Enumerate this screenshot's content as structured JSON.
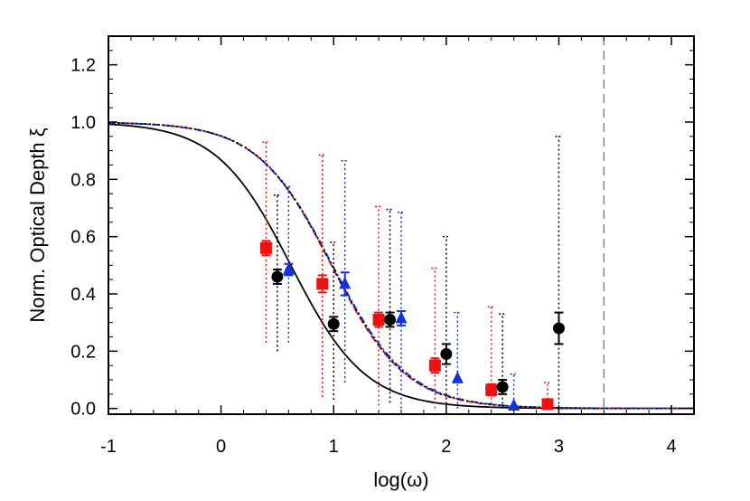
{
  "chart_data": {
    "type": "scatter",
    "title": "",
    "xlabel": "log(ω)",
    "ylabel": "Norm. Optical Depth ξ",
    "xlim": [
      -1,
      4.2
    ],
    "ylim": [
      -0.02,
      1.3
    ],
    "xticks": [
      "-1",
      "0",
      "1",
      "2",
      "3",
      "4"
    ],
    "yticks": [
      "0.0",
      "0.2",
      "0.4",
      "0.6",
      "0.8",
      "1.0",
      "1.2"
    ],
    "grid": false,
    "legend": "none",
    "vertical_reference_line": {
      "x": 3.4,
      "style": "dashed",
      "color": "#888888"
    },
    "series": [
      {
        "marker": "square",
        "color": "#ee1111",
        "points": [
          {
            "x": 0.4,
            "y": 0.56,
            "err": 0.025,
            "lo": 0.23,
            "hi": 0.93
          },
          {
            "x": 0.9,
            "y": 0.435,
            "err": 0.03,
            "lo": 0.04,
            "hi": 0.885
          },
          {
            "x": 1.4,
            "y": 0.31,
            "err": 0.025,
            "lo": 0.01,
            "hi": 0.705
          },
          {
            "x": 1.9,
            "y": 0.15,
            "err": 0.025,
            "lo": 0.0,
            "hi": 0.49
          },
          {
            "x": 2.4,
            "y": 0.065,
            "err": 0.02,
            "lo": 0.0,
            "hi": 0.355
          },
          {
            "x": 2.9,
            "y": 0.015,
            "err": 0.0,
            "lo": 0.0,
            "hi": 0.09
          }
        ]
      },
      {
        "marker": "circle",
        "color": "#000000",
        "points": [
          {
            "x": 0.5,
            "y": 0.46,
            "err": 0.025,
            "lo": 0.2,
            "hi": 0.745
          },
          {
            "x": 1.0,
            "y": 0.295,
            "err": 0.025,
            "lo": 0.03,
            "hi": 0.58
          },
          {
            "x": 1.5,
            "y": 0.31,
            "err": 0.025,
            "lo": 0.02,
            "hi": 0.695
          },
          {
            "x": 2.0,
            "y": 0.19,
            "err": 0.035,
            "lo": 0.0,
            "hi": 0.6
          },
          {
            "x": 2.5,
            "y": 0.075,
            "err": 0.025,
            "lo": 0.0,
            "hi": 0.33
          },
          {
            "x": 3.0,
            "y": 0.28,
            "err": 0.055,
            "lo": 0.0,
            "hi": 0.95
          }
        ]
      },
      {
        "marker": "triangle",
        "color": "#1133dd",
        "points": [
          {
            "x": 0.6,
            "y": 0.485,
            "err": 0.02,
            "lo": 0.23,
            "hi": 0.775
          },
          {
            "x": 1.1,
            "y": 0.435,
            "err": 0.04,
            "lo": 0.09,
            "hi": 0.865
          },
          {
            "x": 1.6,
            "y": 0.315,
            "err": 0.025,
            "lo": 0.0,
            "hi": 0.685
          },
          {
            "x": 2.1,
            "y": 0.105,
            "err": 0.0,
            "lo": 0.0,
            "hi": 0.335
          },
          {
            "x": 2.6,
            "y": 0.01,
            "err": 0.0,
            "lo": 0.0,
            "hi": 0.12
          }
        ]
      }
    ],
    "model_curves": [
      {
        "color": "#000000",
        "style": "solid",
        "x0": 0.62,
        "width": 0.33
      },
      {
        "color": "#ee1111",
        "style": "dashed",
        "x0": 0.98,
        "width": 0.33
      },
      {
        "color": "#1133dd",
        "style": "dashdot",
        "x0": 0.99,
        "width": 0.335
      },
      {
        "color": "#000000",
        "style": "dotted",
        "x0": 0.985,
        "width": 0.33
      }
    ]
  }
}
